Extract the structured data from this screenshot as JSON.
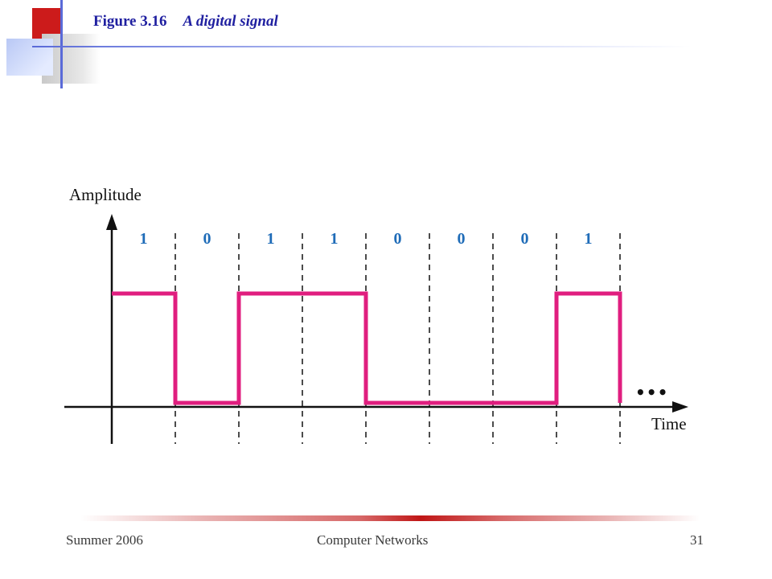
{
  "slide": {
    "figure_number": "Figure 3.16",
    "figure_caption": "A digital signal"
  },
  "diagram": {
    "y_axis_label": "Amplitude",
    "x_axis_label": "Time",
    "continuation_mark": "•••",
    "bits": [
      "1",
      "0",
      "1",
      "1",
      "0",
      "0",
      "0",
      "1"
    ],
    "signal_color": "#e01e7f",
    "bit_label_color": "#1f6cb8"
  },
  "footer": {
    "left": "Summer 2006",
    "center": "Computer Networks",
    "page": "31"
  },
  "theme": {
    "title_color": "#1f1fa0",
    "accent_red": "#c01616",
    "accent_blue": "#2a3fd0"
  }
}
